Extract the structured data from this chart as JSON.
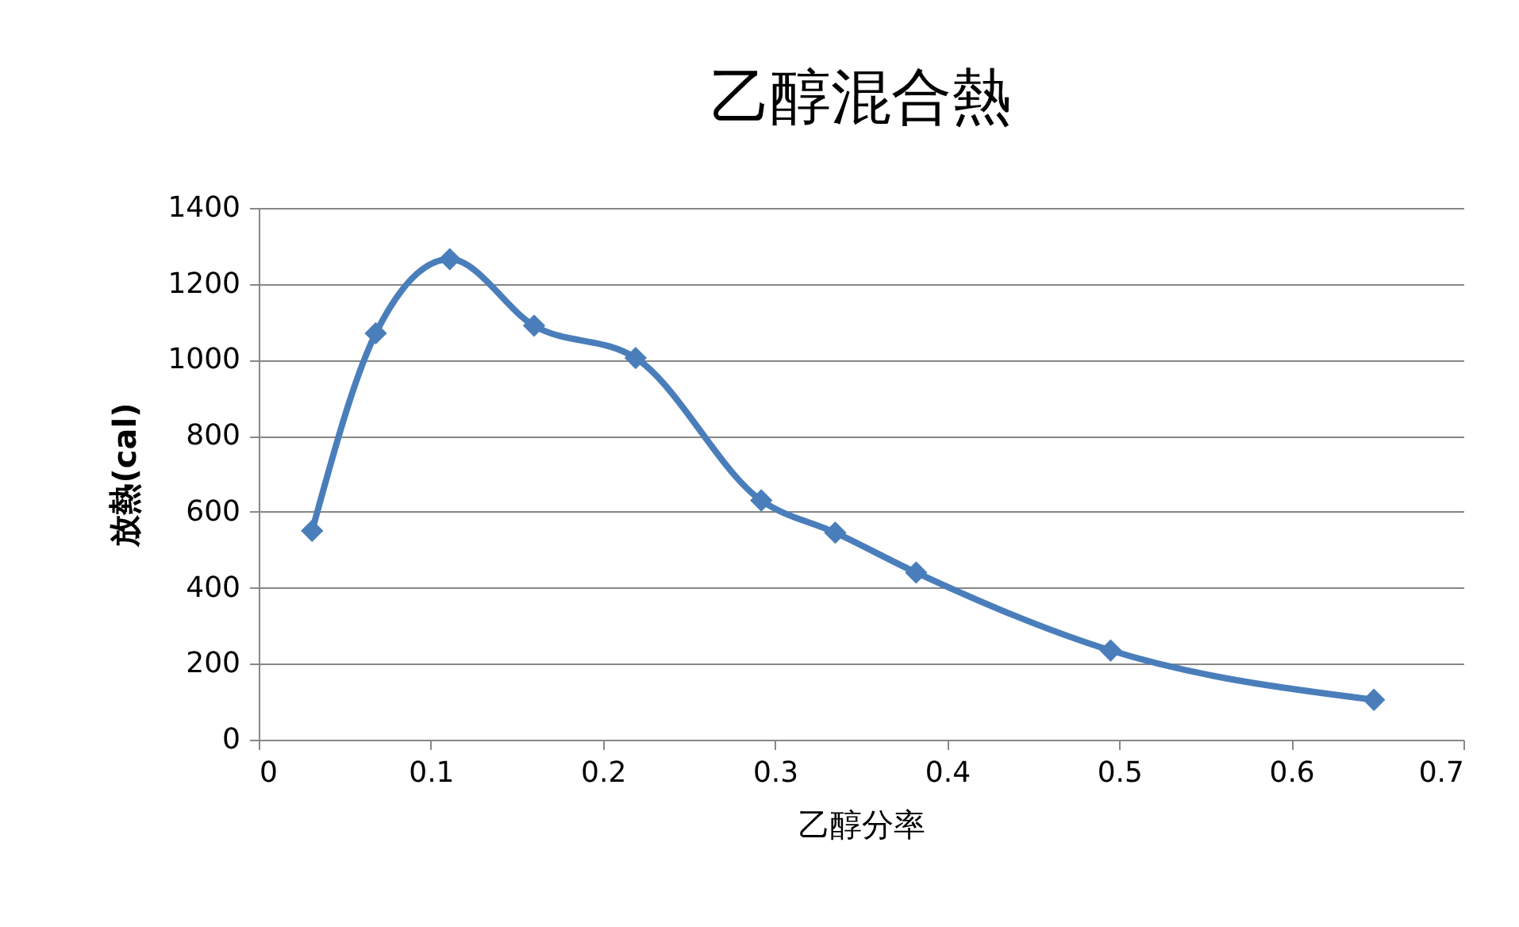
{
  "chart_data": {
    "type": "line",
    "title": "乙醇混合熱",
    "xlabel": "乙醇分率",
    "ylabel": "放熱(cal)",
    "x": [
      0.031,
      0.068,
      0.111,
      0.16,
      0.219,
      0.292,
      0.335,
      0.382,
      0.495,
      0.648
    ],
    "series": [
      {
        "color": "#4a7ebb",
        "values": [
          550,
          1070,
          1265,
          1090,
          1005,
          630,
          545,
          440,
          235,
          105
        ]
      }
    ],
    "xlim": [
      0,
      0.7
    ],
    "xticks": [
      0,
      0.1,
      0.2,
      0.3,
      0.4,
      0.5,
      0.6,
      0.7
    ],
    "ylim": [
      0,
      1400
    ],
    "yticks": [
      0,
      200,
      400,
      600,
      800,
      1000,
      1200,
      1400
    ],
    "grid": "y",
    "legend": false,
    "marker": "diamond",
    "line_style": "solid"
  }
}
